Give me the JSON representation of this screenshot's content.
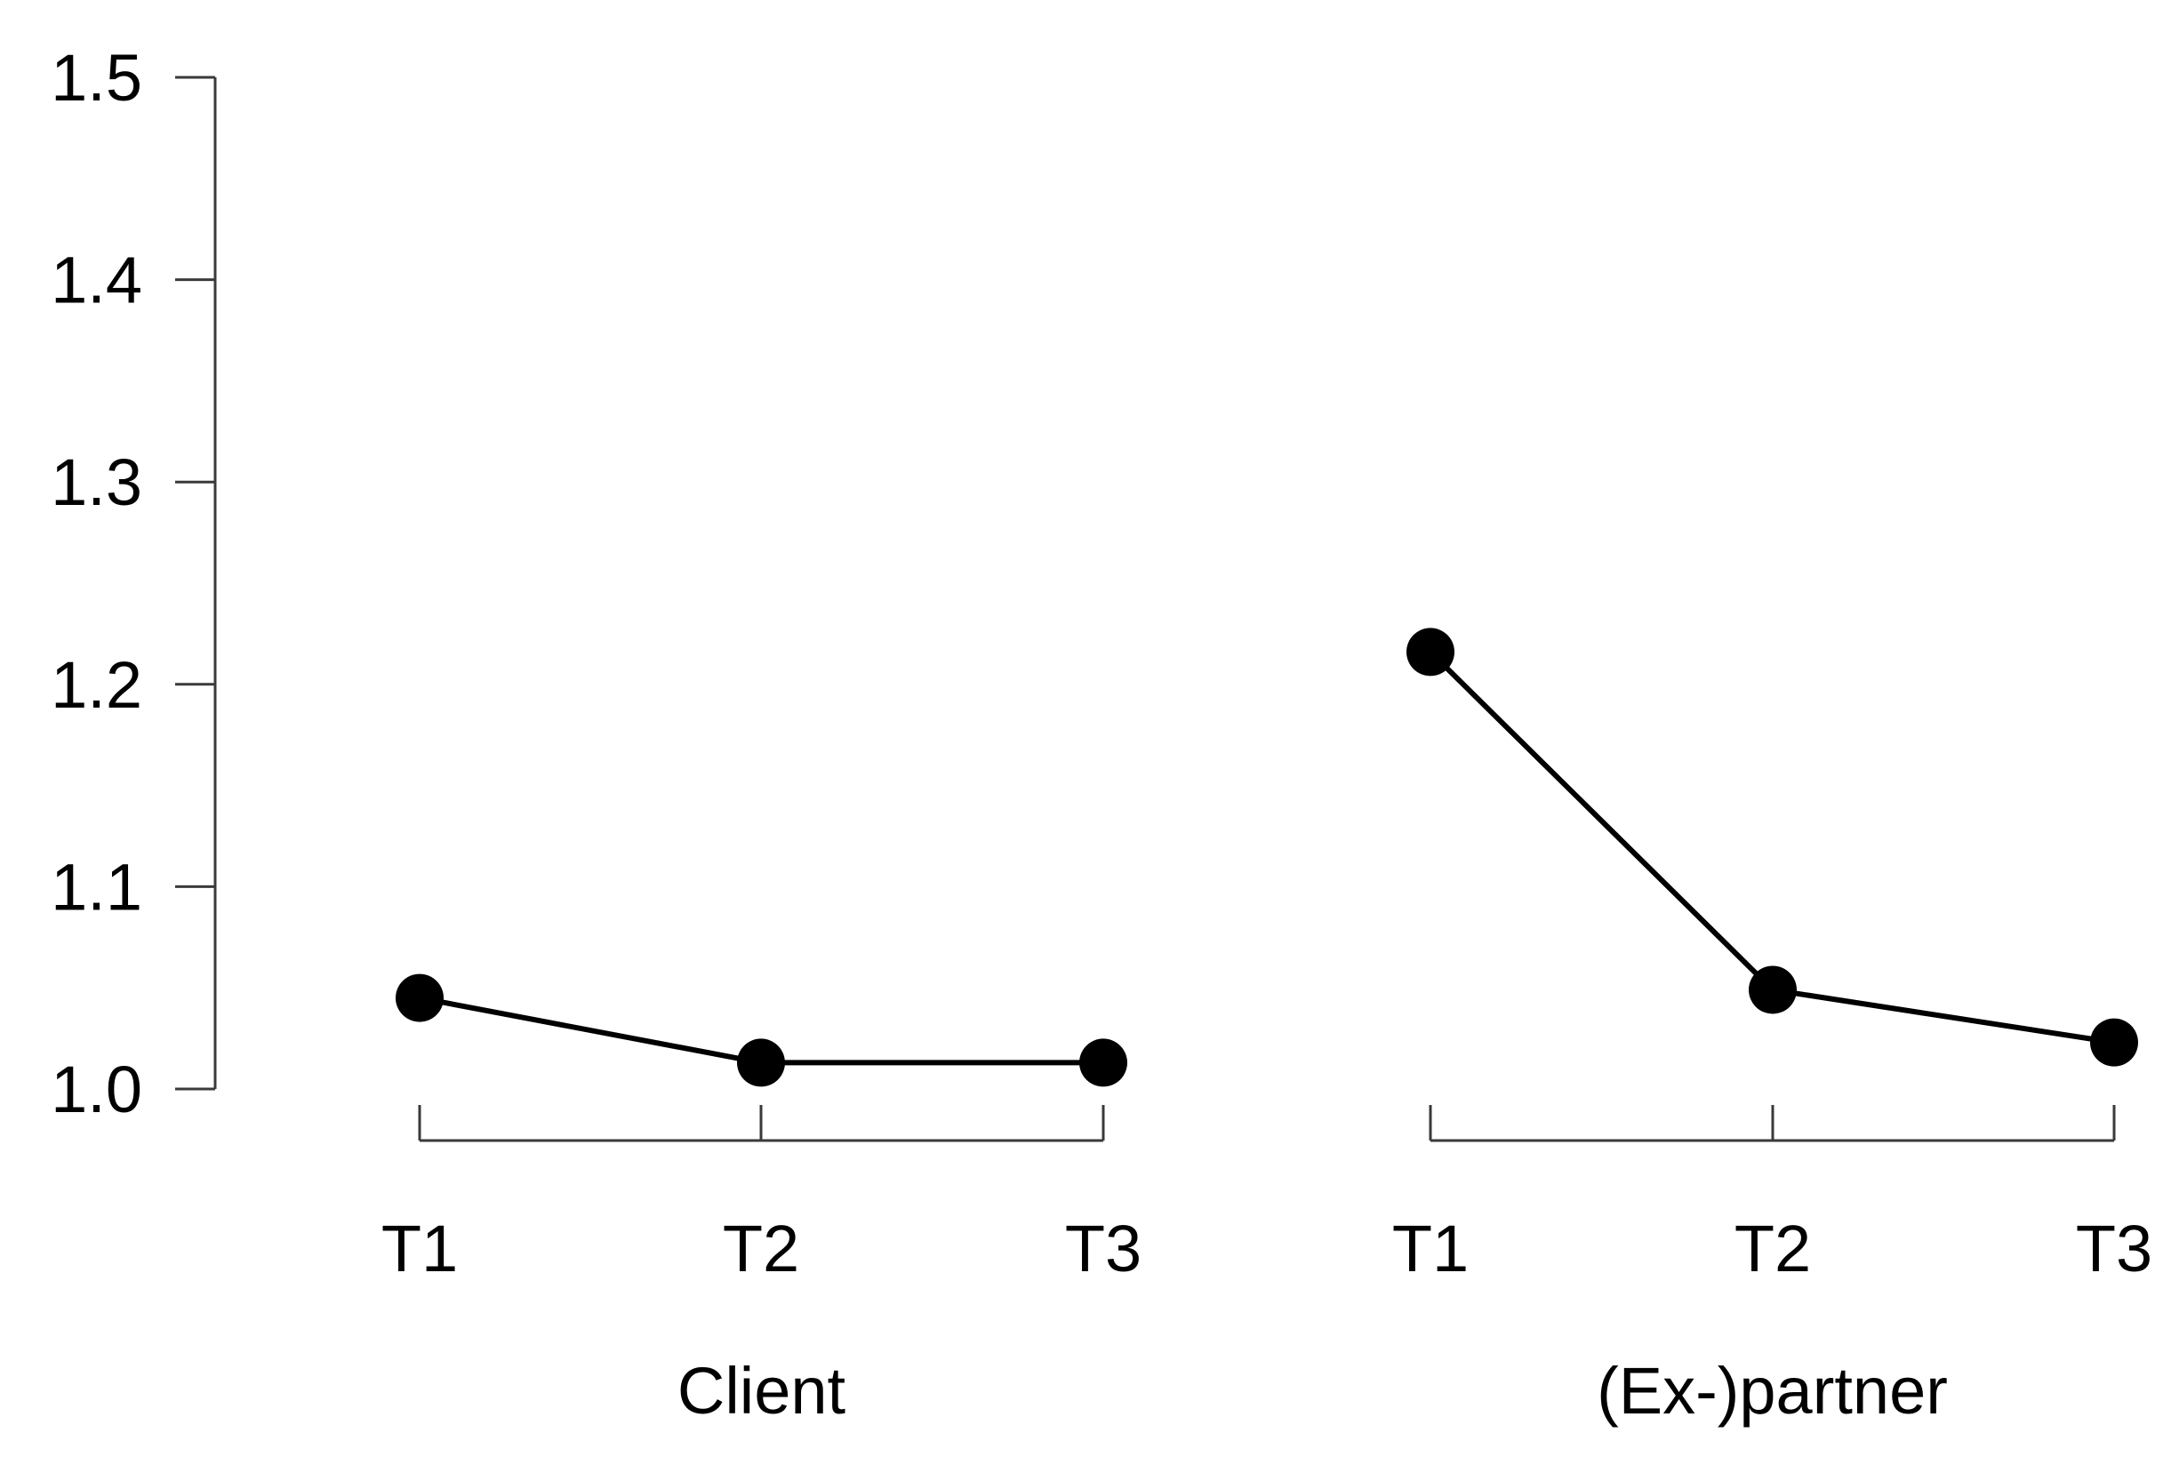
{
  "chart_data": {
    "type": "line",
    "title": "",
    "xlabel": "",
    "ylabel": "",
    "ylim": [
      1.0,
      1.5
    ],
    "yticks": [
      "1.0",
      "1.1",
      "1.2",
      "1.3",
      "1.4",
      "1.5"
    ],
    "grid": false,
    "groups": [
      {
        "label": "Client",
        "categories": [
          "T1",
          "T2",
          "T3"
        ],
        "values": [
          1.045,
          1.013,
          1.013
        ]
      },
      {
        "label": "(Ex-)partner",
        "categories": [
          "T1",
          "T2",
          "T3"
        ],
        "values": [
          1.216,
          1.049,
          1.023
        ]
      }
    ]
  }
}
